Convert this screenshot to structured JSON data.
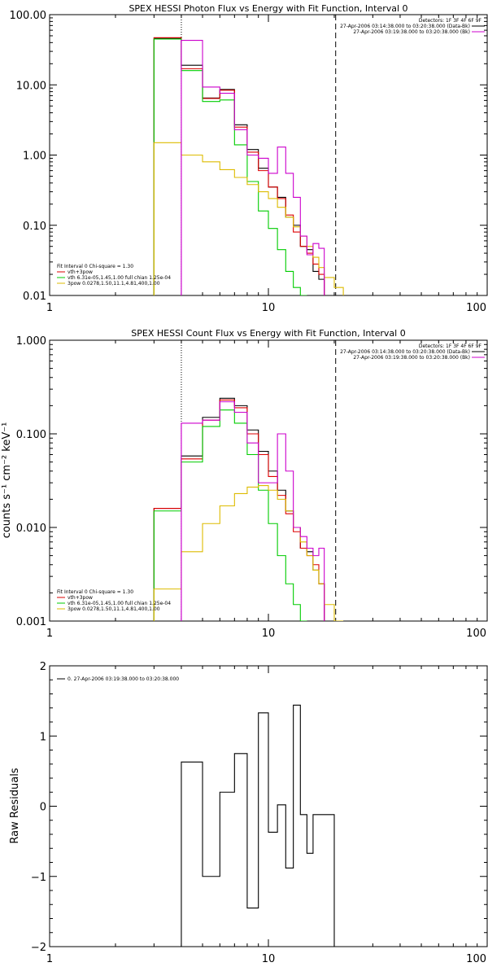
{
  "chart_data": [
    {
      "type": "line",
      "title": "SPEX HESSI Photon Flux vs Energy with Fit Function, Interval 0",
      "xlabel": "",
      "ylabel": "",
      "xscale": "log",
      "yscale": "log",
      "xlim": [
        1,
        100
      ],
      "ylim": [
        0.01,
        100
      ],
      "x_ticks": [
        "1",
        "10",
        "100"
      ],
      "y_ticks": [
        {
          "value": 0.01,
          "label": "0.01"
        },
        {
          "value": 0.1,
          "label": "0.10"
        },
        {
          "value": 1,
          "label": "1.00"
        },
        {
          "value": 10,
          "label": "10.00"
        },
        {
          "value": 100,
          "label": "100.00"
        }
      ],
      "vlines": [
        {
          "x": 4,
          "style": "dotted",
          "color": "#000000"
        },
        {
          "x": 20.3,
          "style": "dashed",
          "color": "#000000"
        }
      ],
      "header_lines": [
        "Detectors: 1F 3F 4F 6F 9F",
        "27-Apr-2006 03:14:38.000 to 03:20:38.000 (Data-Bk)",
        "27-Apr-2006 03:19:38.000 to 03:20:38.000 (Bk)"
      ],
      "header_colors": [
        "#000000",
        "#000000",
        "#cc00cc"
      ],
      "legend": [
        {
          "text": "Fit Interval 0   Chi-square = 1.30",
          "color": ""
        },
        {
          "text": "vth+3pow",
          "color": "#dd0000"
        },
        {
          "text": "vth 6.31e-05,1.45,1.00   full chian 1.25e-04",
          "color": "#00cc00"
        },
        {
          "text": "3pow 0.0278,1.50,11.1,4.81,400,1.00",
          "color": "#ddbb00"
        }
      ],
      "bin_edges": [
        3,
        4,
        5,
        6,
        7,
        8,
        9,
        10,
        11,
        12,
        13,
        14,
        15,
        16,
        17,
        18,
        20,
        22
      ],
      "series": [
        {
          "name": "",
          "color": "#000000",
          "values": [
            46,
            19,
            6.5,
            8.6,
            2.7,
            1.2,
            0.65,
            0.35,
            0.25,
            0.13,
            0.1,
            0.05,
            0.045,
            0.022,
            0.017,
            0,
            0
          ]
        },
        {
          "name": "",
          "color": "#dd0000",
          "values": [
            47,
            17,
            6.4,
            8.4,
            2.5,
            1.1,
            0.6,
            0.35,
            0.24,
            0.14,
            0.08,
            0.05,
            0.04,
            0.028,
            0.02,
            0,
            0
          ]
        },
        {
          "name": "",
          "color": "#00cc00",
          "values": [
            45,
            16,
            5.8,
            6.1,
            1.4,
            0.42,
            0.16,
            0.09,
            0.045,
            0.022,
            0.013,
            0.01,
            0,
            0,
            0,
            0,
            0
          ]
        },
        {
          "name": "",
          "color": "#ddbb00",
          "values": [
            1.5,
            1.0,
            0.8,
            0.62,
            0.48,
            0.38,
            0.3,
            0.24,
            0.18,
            0.13,
            0.095,
            0.07,
            0.05,
            0.035,
            0.025,
            0.018,
            0.013
          ]
        },
        {
          "name": "",
          "color": "#cc00cc",
          "values": [
            0,
            43,
            9.3,
            7.6,
            2.3,
            1.0,
            0.9,
            0.55,
            1.3,
            0.55,
            0.25,
            0.07,
            0.038,
            0.055,
            0.047,
            0,
            0
          ]
        }
      ]
    },
    {
      "type": "line",
      "title": "SPEX HESSI Count Flux vs Energy with Fit Function, Interval 0",
      "xlabel": "",
      "ylabel": "counts s⁻¹ cm⁻² keV⁻¹",
      "xscale": "log",
      "yscale": "log",
      "xlim": [
        1,
        100
      ],
      "ylim": [
        0.001,
        1
      ],
      "x_ticks": [
        "1",
        "10",
        "100"
      ],
      "y_ticks": [
        {
          "value": 0.001,
          "label": "0.001"
        },
        {
          "value": 0.01,
          "label": "0.010"
        },
        {
          "value": 0.1,
          "label": "0.100"
        },
        {
          "value": 1,
          "label": "1.000"
        }
      ],
      "vlines": [
        {
          "x": 4,
          "style": "dotted",
          "color": "#000000"
        },
        {
          "x": 20.3,
          "style": "dashed",
          "color": "#000000"
        }
      ],
      "header_lines": [
        "Detectors: 1F 3F 4F 6F 9F",
        "27-Apr-2006 03:14:38.000 to 03:20:38.000 (Data-Bk)",
        "27-Apr-2006 03:19:38.000 to 03:20:38.000 (Bk)"
      ],
      "header_colors": [
        "#000000",
        "#000000",
        "#cc00cc"
      ],
      "legend": [
        {
          "text": "Fit Interval 0   Chi-square = 1.30",
          "color": ""
        },
        {
          "text": "vth+3pow",
          "color": "#dd0000"
        },
        {
          "text": "vth 6.31e-05,1.45,1.00   full chian 1.25e-04",
          "color": "#00cc00"
        },
        {
          "text": "3pow 0.0278,1.50,11.1,4.81,400,1.00",
          "color": "#ddbb00"
        }
      ],
      "bin_edges": [
        3,
        4,
        5,
        6,
        7,
        8,
        9,
        10,
        11,
        12,
        13,
        14,
        15,
        16,
        17,
        18,
        20,
        22
      ],
      "series": [
        {
          "name": "",
          "color": "#000000",
          "values": [
            0.016,
            0.058,
            0.15,
            0.24,
            0.2,
            0.11,
            0.065,
            0.04,
            0.025,
            0.015,
            0.01,
            0.006,
            0.0055,
            0.0035,
            0.0025,
            0,
            0
          ]
        },
        {
          "name": "",
          "color": "#dd0000",
          "values": [
            0.016,
            0.054,
            0.14,
            0.23,
            0.19,
            0.1,
            0.06,
            0.035,
            0.022,
            0.014,
            0.009,
            0.006,
            0.005,
            0.004,
            0.0025,
            0,
            0
          ]
        },
        {
          "name": "",
          "color": "#00cc00",
          "values": [
            0.015,
            0.05,
            0.12,
            0.18,
            0.13,
            0.06,
            0.025,
            0.011,
            0.005,
            0.0025,
            0.0015,
            0.001,
            0,
            0,
            0,
            0,
            0
          ]
        },
        {
          "name": "",
          "color": "#ddbb00",
          "values": [
            0.0022,
            0.0055,
            0.011,
            0.017,
            0.023,
            0.027,
            0.028,
            0.025,
            0.02,
            0.015,
            0.01,
            0.007,
            0.005,
            0.0035,
            0.0025,
            0.0015,
            0.001
          ]
        },
        {
          "name": "",
          "color": "#cc00cc",
          "values": [
            0,
            0.13,
            0.14,
            0.22,
            0.17,
            0.08,
            0.03,
            0.03,
            0.1,
            0.04,
            0.01,
            0.008,
            0.006,
            0.005,
            0.006,
            0,
            0
          ]
        }
      ]
    },
    {
      "type": "line",
      "title": "",
      "xlabel": "",
      "ylabel": "Raw Residuals",
      "xscale": "log",
      "yscale": "linear",
      "xlim": [
        1,
        100
      ],
      "ylim": [
        -2,
        2
      ],
      "x_ticks": [
        "1",
        "10",
        "100"
      ],
      "y_ticks": [
        {
          "value": -2,
          "label": "−2"
        },
        {
          "value": -1,
          "label": "−1"
        },
        {
          "value": 0,
          "label": "0"
        },
        {
          "value": 1,
          "label": "1"
        },
        {
          "value": 2,
          "label": "2"
        }
      ],
      "vlines": [],
      "header_lines": [],
      "header_colors": [],
      "legend": [
        {
          "text": "0. 27-Apr-2006 03:19:38.000 to 03:20:38.000",
          "color": "#000000"
        }
      ],
      "bin_edges": [
        4,
        5,
        6,
        7,
        8,
        9,
        10,
        11,
        12,
        13,
        14,
        15,
        16,
        17,
        18,
        20
      ],
      "series": [
        {
          "name": "",
          "color": "#000000",
          "values": [
            0.63,
            -1.0,
            0.2,
            0.75,
            -1.45,
            1.33,
            -0.37,
            0.02,
            -0.88,
            1.44,
            -0.12,
            -0.67,
            -0.12,
            -0.12,
            -0.12
          ]
        }
      ]
    }
  ]
}
